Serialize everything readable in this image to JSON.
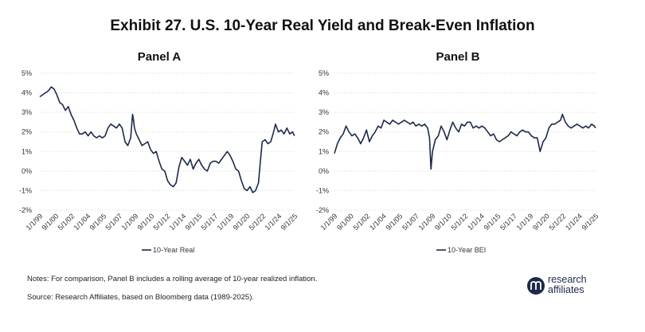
{
  "title": "Exhibit 27. U.S. 10-Year Real Yield and Break-Even Inflation",
  "notes": "Notes: For comparison, Panel B includes a rolling average of 10-year realized inflation.",
  "source": "Source: Research Affiliates, based on Bloomberg data (1989-2025).",
  "logo": {
    "line1": "research",
    "line2": "affiliates",
    "icon": "research-affiliates-logo-icon"
  },
  "colors": {
    "line": "#1c2a4a",
    "grid": "#d9d9d9"
  },
  "chart_data": [
    {
      "type": "line",
      "title": "Panel A",
      "ylim": [
        -2,
        5
      ],
      "yticks": [
        "5%",
        "4%",
        "3%",
        "2%",
        "1%",
        "0%",
        "-1%",
        "-2%"
      ],
      "xticks": [
        "1/1/99",
        "9/1/00",
        "5/1/02",
        "1/1/04",
        "9/1/05",
        "5/1/07",
        "1/1/09",
        "9/1/10",
        "5/1/12",
        "1/1/14",
        "9/1/15",
        "5/1/17",
        "1/1/19",
        "9/1/20",
        "5/1/22",
        "1/1/24",
        "9/1/25"
      ],
      "legend": "10-Year Real",
      "grid": true,
      "series": [
        {
          "name": "10-Year Real",
          "x": [
            1999.0,
            1999.3,
            1999.6,
            1999.9,
            2000.2,
            2000.5,
            2000.8,
            2001.1,
            2001.4,
            2001.7,
            2002.0,
            2002.3,
            2002.6,
            2002.9,
            2003.2,
            2003.5,
            2003.8,
            2004.1,
            2004.4,
            2004.7,
            2005.0,
            2005.3,
            2005.6,
            2005.9,
            2006.2,
            2006.5,
            2006.8,
            2007.1,
            2007.4,
            2007.7,
            2008.0,
            2008.3,
            2008.6,
            2008.8,
            2008.9,
            2009.0,
            2009.2,
            2009.5,
            2009.8,
            2010.1,
            2010.4,
            2010.7,
            2011.0,
            2011.3,
            2011.6,
            2011.9,
            2012.2,
            2012.5,
            2012.8,
            2013.1,
            2013.4,
            2013.7,
            2014.0,
            2014.3,
            2014.6,
            2014.9,
            2015.2,
            2015.5,
            2015.8,
            2016.1,
            2016.4,
            2016.7,
            2017.0,
            2017.3,
            2017.6,
            2017.9,
            2018.2,
            2018.5,
            2018.8,
            2019.1,
            2019.4,
            2019.7,
            2020.0,
            2020.3,
            2020.6,
            2020.9,
            2021.2,
            2021.5,
            2021.8,
            2022.1,
            2022.3,
            2022.5,
            2022.8,
            2023.1,
            2023.4,
            2023.7,
            2023.9,
            2024.2,
            2024.5,
            2024.8,
            2025.1,
            2025.4,
            2025.7,
            2025.9
          ],
          "values": [
            3.8,
            3.9,
            4.0,
            4.1,
            4.3,
            4.2,
            3.9,
            3.5,
            3.4,
            3.1,
            3.3,
            2.9,
            2.6,
            2.2,
            1.9,
            1.9,
            2.0,
            1.8,
            2.0,
            1.8,
            1.7,
            1.8,
            1.7,
            1.8,
            2.2,
            2.4,
            2.3,
            2.2,
            2.4,
            2.2,
            1.5,
            1.3,
            1.7,
            2.9,
            2.6,
            2.2,
            1.9,
            1.6,
            1.3,
            1.4,
            1.5,
            1.1,
            0.9,
            1.0,
            0.5,
            0.1,
            0.0,
            -0.5,
            -0.7,
            -0.8,
            -0.6,
            0.2,
            0.7,
            0.5,
            0.3,
            0.6,
            0.1,
            0.4,
            0.6,
            0.3,
            0.1,
            0.0,
            0.4,
            0.5,
            0.5,
            0.4,
            0.6,
            0.8,
            1.0,
            0.8,
            0.5,
            0.1,
            0.0,
            -0.5,
            -0.9,
            -1.0,
            -0.8,
            -1.1,
            -1.0,
            -0.6,
            0.5,
            1.5,
            1.6,
            1.4,
            1.5,
            2.0,
            2.4,
            2.0,
            2.1,
            1.9,
            2.2,
            1.9,
            2.0,
            1.8
          ]
        }
      ]
    },
    {
      "type": "line",
      "title": "Panel B",
      "ylim": [
        -2,
        5
      ],
      "yticks": [
        "5%",
        "4%",
        "3%",
        "2%",
        "1%",
        "0%",
        "-1%",
        "-2%"
      ],
      "xticks": [
        "1/1/99",
        "9/1/00",
        "5/1/02",
        "1/1/04",
        "9/1/05",
        "5/1/07",
        "1/1/09",
        "9/1/10",
        "5/1/12",
        "1/1/14",
        "9/1/15",
        "5/1/17",
        "1/1/19",
        "9/1/20",
        "5/1/22",
        "1/1/24",
        "9/1/25"
      ],
      "legend": "10-Year BEI",
      "grid": true,
      "series": [
        {
          "name": "10-Year BEI",
          "x": [
            1999.0,
            1999.3,
            1999.6,
            1999.9,
            2000.2,
            2000.5,
            2000.8,
            2001.1,
            2001.4,
            2001.7,
            2002.0,
            2002.3,
            2002.6,
            2002.9,
            2003.2,
            2003.5,
            2003.8,
            2004.1,
            2004.4,
            2004.7,
            2005.0,
            2005.3,
            2005.6,
            2005.9,
            2006.2,
            2006.5,
            2006.8,
            2007.1,
            2007.4,
            2007.7,
            2008.0,
            2008.3,
            2008.6,
            2008.8,
            2008.95,
            2009.1,
            2009.4,
            2009.7,
            2010.0,
            2010.3,
            2010.6,
            2010.9,
            2011.2,
            2011.5,
            2011.8,
            2012.1,
            2012.4,
            2012.7,
            2013.0,
            2013.3,
            2013.6,
            2013.9,
            2014.2,
            2014.5,
            2014.8,
            2015.1,
            2015.4,
            2015.7,
            2016.0,
            2016.3,
            2016.6,
            2016.9,
            2017.2,
            2017.5,
            2017.8,
            2018.1,
            2018.4,
            2018.7,
            2019.0,
            2019.3,
            2019.6,
            2019.9,
            2020.2,
            2020.5,
            2020.8,
            2021.1,
            2021.4,
            2021.7,
            2022.0,
            2022.3,
            2022.5,
            2022.8,
            2023.1,
            2023.4,
            2023.7,
            2024.0,
            2024.3,
            2024.6,
            2024.9,
            2025.2,
            2025.5,
            2025.8,
            2025.9
          ],
          "values": [
            0.9,
            1.4,
            1.7,
            1.9,
            2.3,
            2.0,
            1.8,
            1.9,
            1.7,
            1.4,
            1.7,
            2.1,
            1.5,
            1.8,
            2.0,
            2.3,
            2.2,
            2.6,
            2.5,
            2.4,
            2.6,
            2.5,
            2.4,
            2.5,
            2.6,
            2.5,
            2.4,
            2.5,
            2.3,
            2.4,
            2.3,
            2.4,
            2.2,
            1.7,
            0.1,
            1.0,
            1.6,
            1.8,
            2.3,
            2.0,
            1.6,
            2.1,
            2.5,
            2.2,
            2.0,
            2.4,
            2.3,
            2.5,
            2.5,
            2.2,
            2.3,
            2.2,
            2.3,
            2.2,
            2.0,
            1.8,
            1.9,
            1.6,
            1.5,
            1.6,
            1.7,
            1.8,
            2.0,
            1.9,
            1.8,
            2.0,
            2.1,
            2.0,
            2.0,
            1.8,
            1.7,
            1.7,
            1.0,
            1.5,
            1.7,
            2.2,
            2.4,
            2.4,
            2.5,
            2.6,
            2.9,
            2.5,
            2.3,
            2.2,
            2.3,
            2.4,
            2.3,
            2.2,
            2.3,
            2.2,
            2.4,
            2.3,
            2.2
          ]
        }
      ]
    }
  ]
}
